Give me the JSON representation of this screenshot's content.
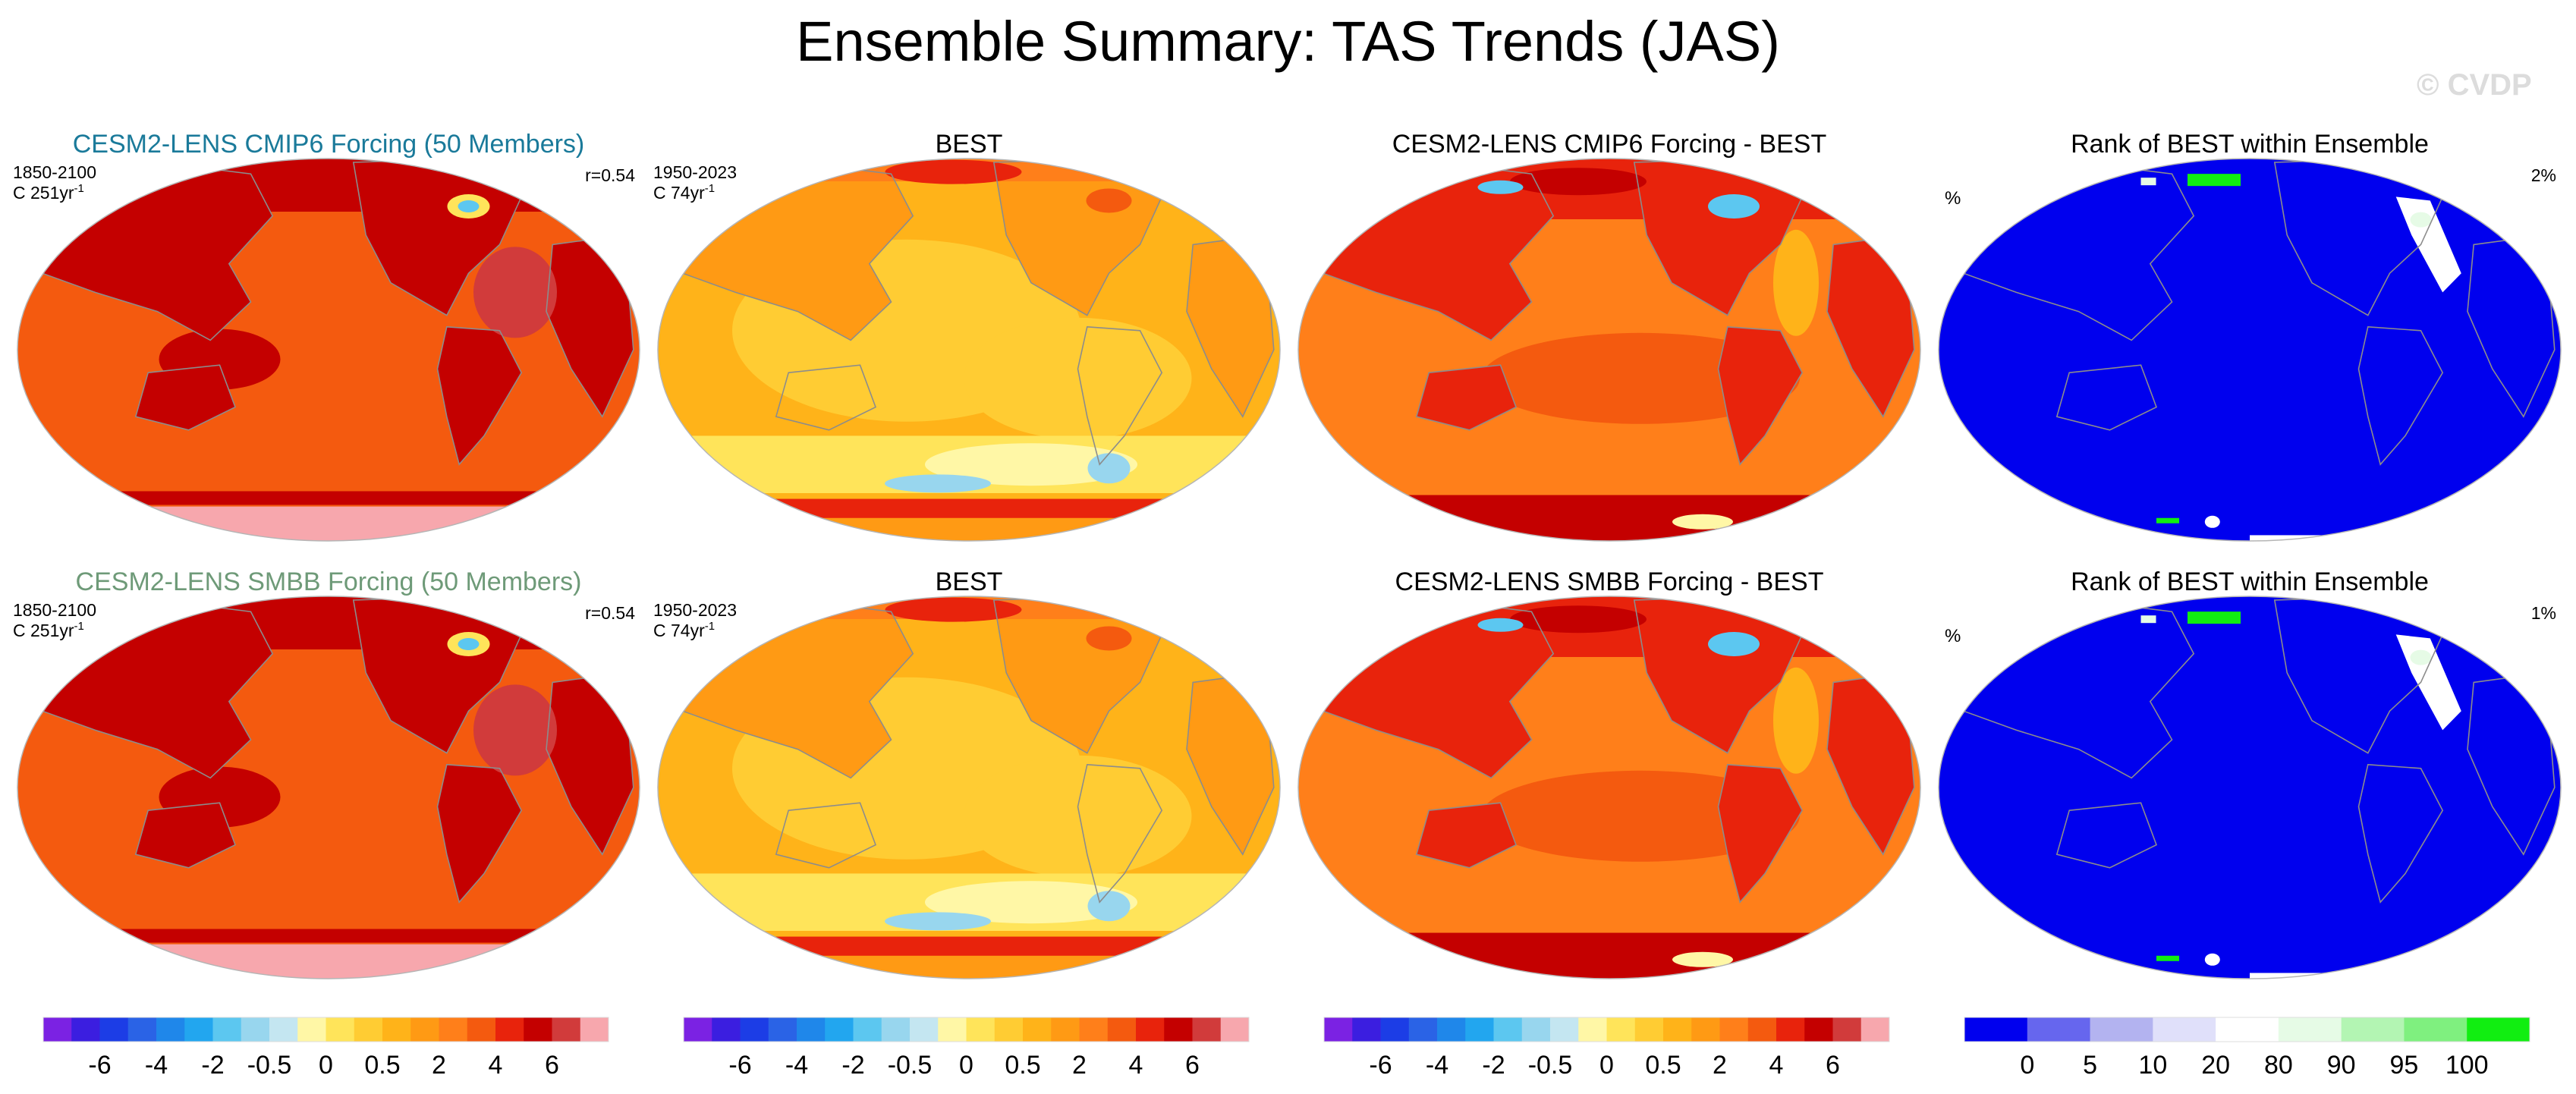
{
  "figure": {
    "title": "Ensemble Summary: TAS Trends (JAS)",
    "watermark": "© CVDP"
  },
  "colors": {
    "trend_palette": [
      "#7b22e3",
      "#3b1ee0",
      "#1c3de6",
      "#2a63e6",
      "#1f87ea",
      "#22a6ef",
      "#5cc7f0",
      "#98d6ee",
      "#c4e6f1",
      "#fff7a6",
      "#ffe45a",
      "#ffcc33",
      "#ffb319",
      "#ff9a14",
      "#ff7f1a",
      "#f45a0f",
      "#e8230c",
      "#c40000",
      "#d13b3b",
      "#f7a7ad"
    ],
    "rank_palette": [
      "#0000ee",
      "#6666ee",
      "#b3b3f0",
      "#e0e0fa",
      "#ffffff",
      "#e6fbe6",
      "#b3f5b3",
      "#7ff07f",
      "#11ee11"
    ],
    "coastline": "#8c8c8c"
  },
  "chart_data": [
    {
      "type": "heatmap",
      "title": "CESM2-LENS CMIP6 Forcing (50 Members)",
      "title_color": "#1a7a9a",
      "left_label_line1": "1850-2100",
      "left_label_line2": "C 251yr",
      "unit_exponent": "-1",
      "right_label": "r=0.54",
      "field": "model"
    },
    {
      "type": "heatmap",
      "title": "BEST",
      "left_label_line1": "1950-2023",
      "left_label_line2": "C 74yr",
      "unit_exponent": "-1",
      "field": "obs"
    },
    {
      "type": "heatmap",
      "title": "CESM2-LENS CMIP6 Forcing - BEST",
      "field": "diff"
    },
    {
      "type": "heatmap",
      "title": "Rank of BEST within Ensemble",
      "left_label": "%",
      "right_label": "2%",
      "field": "rank"
    },
    {
      "type": "heatmap",
      "title": "CESM2-LENS SMBB Forcing (50 Members)",
      "title_color": "#6e9a78",
      "left_label_line1": "1850-2100",
      "left_label_line2": "C 251yr",
      "unit_exponent": "-1",
      "right_label": "r=0.54",
      "field": "model"
    },
    {
      "type": "heatmap",
      "title": "BEST",
      "left_label_line1": "1950-2023",
      "left_label_line2": "C 74yr",
      "unit_exponent": "-1",
      "field": "obs"
    },
    {
      "type": "heatmap",
      "title": "CESM2-LENS SMBB Forcing - BEST",
      "field": "diff"
    },
    {
      "type": "heatmap",
      "title": "Rank of BEST within Ensemble",
      "left_label": "%",
      "right_label": "1%",
      "field": "rank"
    }
  ],
  "colorbars": [
    {
      "palette": "trend_palette",
      "tick_labels": [
        "-6",
        "-4",
        "-2",
        "-0.5",
        "0",
        "0.5",
        "2",
        "4",
        "6"
      ]
    },
    {
      "palette": "trend_palette",
      "tick_labels": [
        "-6",
        "-4",
        "-2",
        "-0.5",
        "0",
        "0.5",
        "2",
        "4",
        "6"
      ]
    },
    {
      "palette": "trend_palette",
      "tick_labels": [
        "-6",
        "-4",
        "-2",
        "-0.5",
        "0",
        "0.5",
        "2",
        "4",
        "6"
      ]
    },
    {
      "palette": "rank_palette",
      "tick_labels": [
        "0",
        "5",
        "10",
        "20",
        "80",
        "90",
        "95",
        "100"
      ]
    }
  ]
}
